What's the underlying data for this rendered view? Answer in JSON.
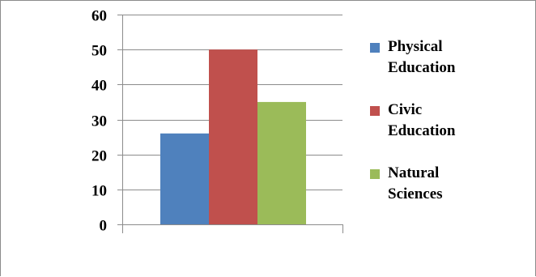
{
  "chart_data": {
    "type": "bar",
    "categories": [
      ""
    ],
    "series": [
      {
        "name": "Physical Education",
        "values": [
          26
        ],
        "color": "#4f81bd"
      },
      {
        "name": "Civic Education",
        "values": [
          50
        ],
        "color": "#c0504d"
      },
      {
        "name": "Natural Sciences",
        "values": [
          35
        ],
        "color": "#9bbb59"
      }
    ],
    "title": "",
    "xlabel": "",
    "ylabel": "",
    "ylim": [
      0,
      60
    ],
    "yticks": [
      "0",
      "10",
      "20",
      "30",
      "40",
      "50",
      "60"
    ],
    "grid": true,
    "legend_position": "right"
  },
  "legend": {
    "items": [
      {
        "line1": "Physical",
        "line2": "Education"
      },
      {
        "line1": "Civic",
        "line2": "Education"
      },
      {
        "line1": "Natural",
        "line2": "Sciences"
      }
    ]
  }
}
